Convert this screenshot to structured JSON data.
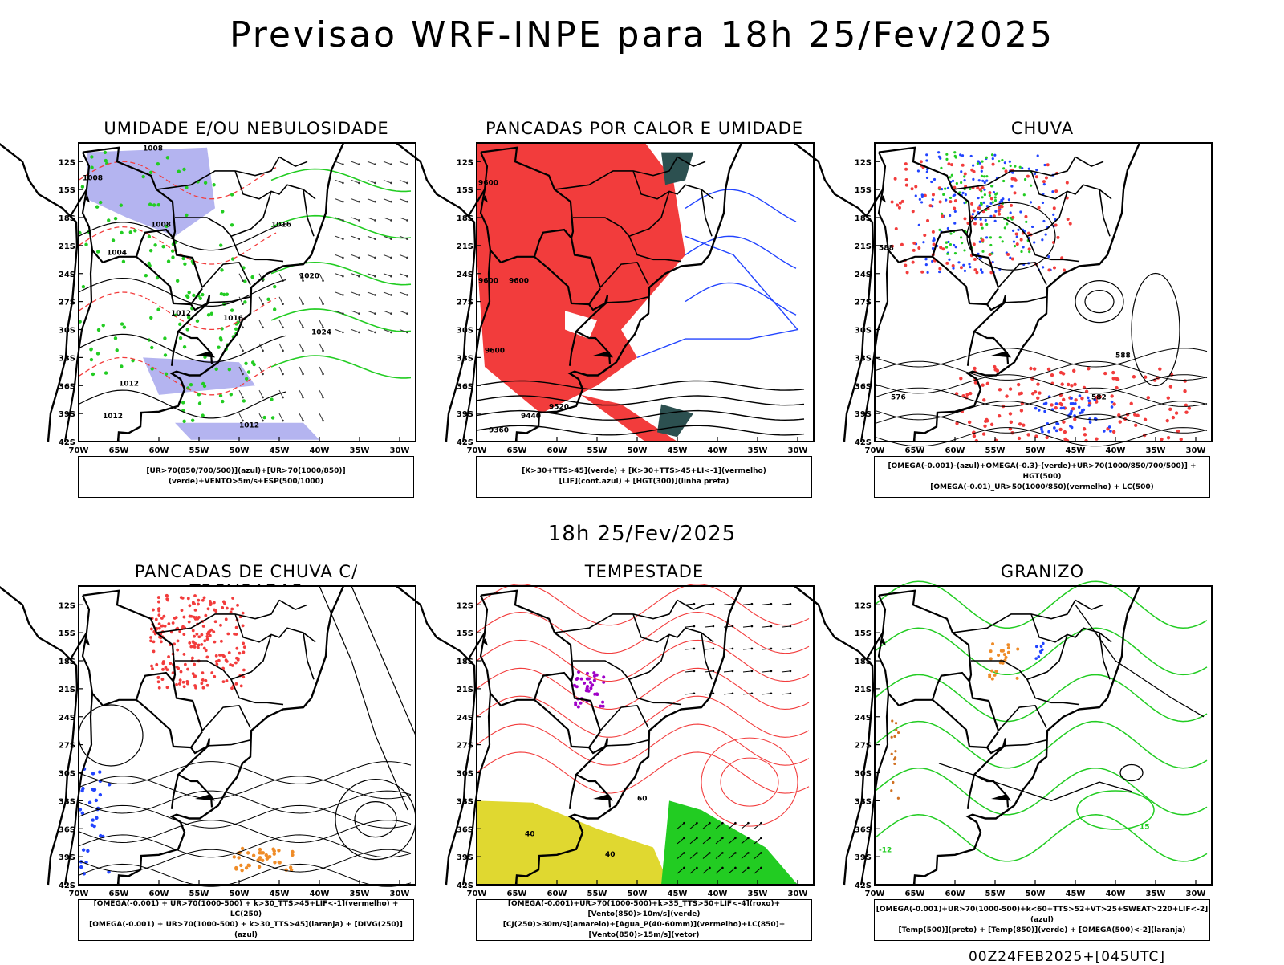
{
  "header": {
    "title": "Previsao WRF-INPE  para 18h 25/Fev/2025"
  },
  "mid_title": "18h 25/Fev/2025",
  "footer": "00Z24FEB2025+[045UTC]",
  "axes": {
    "lat_labels": [
      "12S",
      "15S",
      "18S",
      "21S",
      "24S",
      "27S",
      "30S",
      "33S",
      "36S",
      "39S",
      "42S"
    ],
    "lon_labels": [
      "70W",
      "65W",
      "60W",
      "55W",
      "50W",
      "45W",
      "40W",
      "35W",
      "30W"
    ]
  },
  "colors": {
    "red": "#f23c3c",
    "green": "#22cc22",
    "blue": "#2244ff",
    "lavender": "#b4b4f0",
    "darkteal": "#2c5050",
    "yellow": "#e0d830",
    "orange": "#ef8c28",
    "purple": "#a000c8"
  },
  "panels": [
    {
      "title": "UMIDADE E/OU NEBULOSIDADE",
      "legend": [
        "[UR>70(850/700/500)](azul)+[UR>70(1000/850)](verde)+VENTO>5m/s+ESP(500/1000)"
      ],
      "contour_labels": [
        "1008",
        "1008",
        "1008",
        "1004",
        "1012",
        "1016",
        "1016",
        "1020",
        "1024",
        "1012",
        "1012",
        "1012"
      ]
    },
    {
      "title": "PANCADAS POR CALOR E UMIDADE",
      "legend": [
        "[K>30+TTS>45](verde)  +  [K>30+TTS>45+LI<-1](vermelho)",
        "[LIF](cont.azul)  +  [HGT(300)](linha preta)"
      ],
      "contour_labels": [
        "9600",
        "9600",
        "9600",
        "9600",
        "9520",
        "9440",
        "9360"
      ]
    },
    {
      "title": "CHUVA",
      "legend": [
        "[OMEGA(-0.001)-(azul)+OMEGA(-0.3)-(verde)+UR>70(1000/850/700/500)]  +  HGT(500)",
        "[OMEGA(-0.01)_UR>50(1000/850)(vermelho)  +  LC(500)"
      ],
      "contour_labels": [
        "588",
        "588",
        "576",
        "582"
      ]
    },
    {
      "title": "PANCADAS DE CHUVA C/ TROVOADAS",
      "legend": [
        "[OMEGA(-0.001)  +  UR>70(1000-500)  +  k>30_TTS>45+LIF<-1](vermelho)  +  LC(250)",
        "[OMEGA(-0.001)  +  UR>70(1000-500)  +  k>30_TTS>45](laranja)  +  [DIVG(250)](azul)"
      ],
      "contour_labels": []
    },
    {
      "title": "TEMPESTADE",
      "legend": [
        "[OMEGA(-0.001)+UR>70(1000-500)+k>35_TTS>50+LIF<-4](roxo)+[Vento(850)>10m/s](verde)",
        "[CJ(250)>30m/s](amarelo)+[Agua_P(40-60mm)](vermelho)+LC(850)+[Vento(850)>15m/s](vetor)"
      ],
      "contour_labels": [
        "40",
        "40",
        "60"
      ]
    },
    {
      "title": "GRANIZO",
      "legend": [
        "[OMEGA(-0.001)+UR>70(1000-500)+k<60+TTS>52+VT>25+SWEAT>220+LIF<-2](azul)",
        "[Temp(500)](preto)  +  [Temp(850)](verde)  +  [OMEGA(500)<-2](laranja)"
      ],
      "contour_labels": [
        "-12",
        "15"
      ]
    }
  ]
}
